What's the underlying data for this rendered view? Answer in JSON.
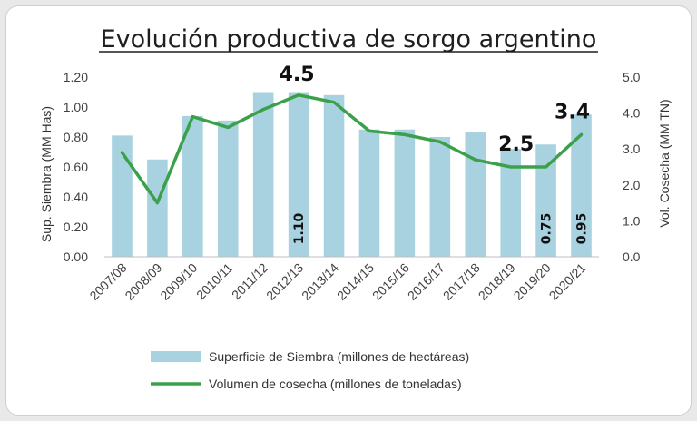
{
  "chart_data": {
    "type": "bar+line",
    "title": "Evolución productiva de sorgo argentino",
    "categories": [
      "2007/08",
      "2008/09",
      "2009/10",
      "2010/11",
      "2011/12",
      "2012/13",
      "2013/14",
      "2014/15",
      "2015/16",
      "2016/17",
      "2017/18",
      "2018/19",
      "2019/20",
      "2020/21"
    ],
    "y_left": {
      "label": "Sup. Siembra (MM Has)",
      "lim": [
        0,
        1.2
      ],
      "ticks": [
        "0.00",
        "0.20",
        "0.40",
        "0.60",
        "0.80",
        "1.00",
        "1.20"
      ]
    },
    "y_right": {
      "label": "Vol. Cosecha (MM TN)",
      "lim": [
        0,
        5
      ],
      "ticks": [
        "0.0",
        "1.0",
        "2.0",
        "3.0",
        "4.0",
        "5.0"
      ]
    },
    "series": [
      {
        "name": "Superficie de Siembra (millones de hectáreas)",
        "type": "bar",
        "axis": "left",
        "color": "#a9d2e0",
        "values": [
          0.81,
          0.65,
          0.94,
          0.91,
          1.1,
          1.1,
          1.08,
          0.85,
          0.85,
          0.8,
          0.83,
          0.72,
          0.75,
          0.95
        ]
      },
      {
        "name": "Volumen de cosecha (millones de toneladas)",
        "type": "line",
        "axis": "right",
        "color": "#3aa14a",
        "values": [
          2.9,
          1.5,
          3.9,
          3.6,
          4.1,
          4.5,
          4.3,
          3.5,
          3.4,
          3.2,
          2.7,
          2.5,
          2.5,
          3.4
        ]
      }
    ],
    "line_annotations": [
      {
        "index": 5,
        "text": "4.5"
      },
      {
        "index": 11,
        "text": "2.5"
      },
      {
        "index": 13,
        "text": "3.4"
      }
    ],
    "bar_annotations": [
      {
        "index": 5,
        "text": "1.10"
      },
      {
        "index": 12,
        "text": "0.75"
      },
      {
        "index": 13,
        "text": "0.95"
      }
    ],
    "legend_position": "bottom"
  }
}
